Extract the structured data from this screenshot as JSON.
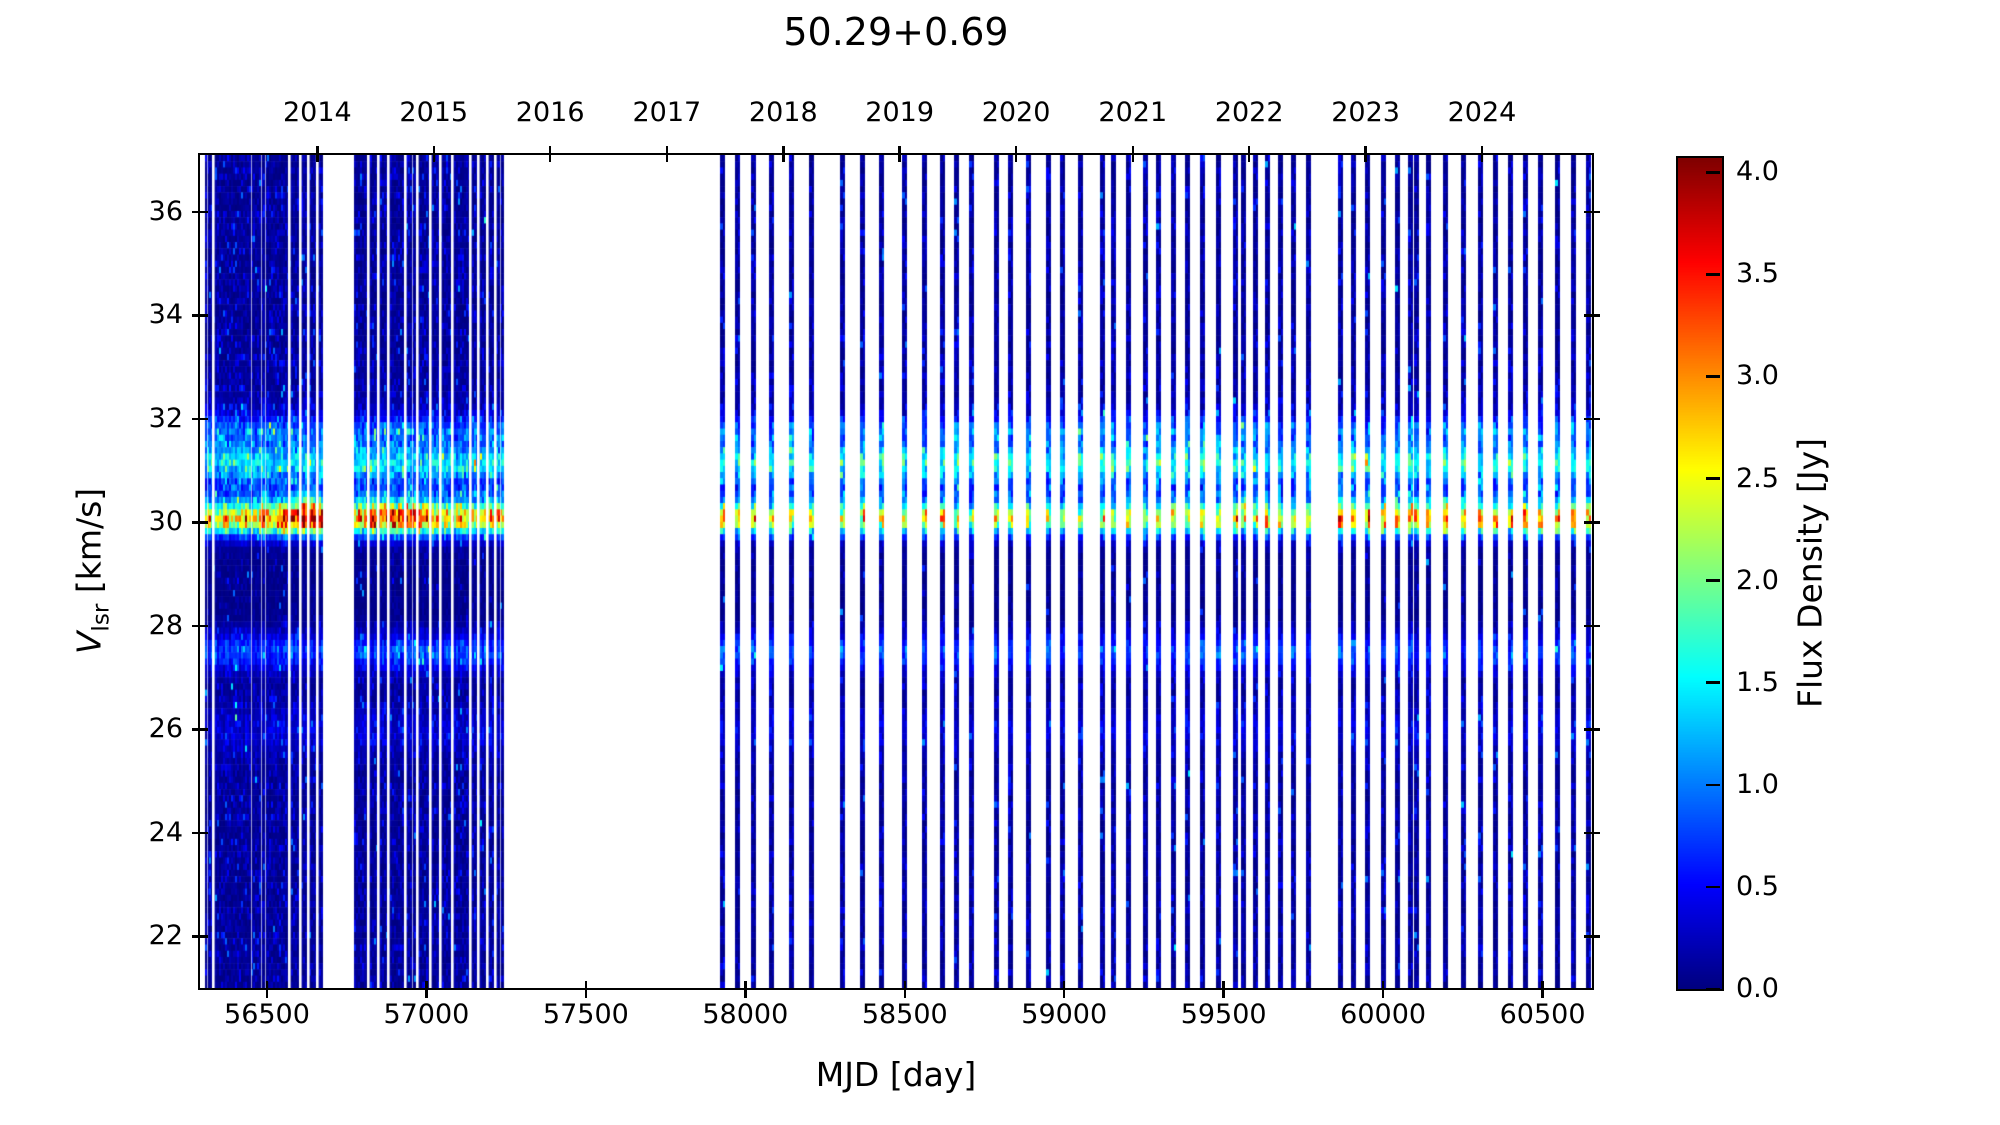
{
  "chart_data": {
    "type": "heatmap",
    "title": "50.29+0.69",
    "xlabel": "MJD [day]",
    "ylabel": "V_lsr [km/s]",
    "ylabel_parts": {
      "symbol": "V",
      "subscript": "lsr",
      "units": " [km/s]"
    },
    "colormap": "jet",
    "grid": false,
    "xlim": [
      56290,
      60655
    ],
    "ylim": [
      21.0,
      37.1
    ],
    "x_ticks": [
      56500,
      57000,
      57500,
      58000,
      58500,
      59000,
      59500,
      60000,
      60500
    ],
    "y_ticks": [
      22,
      24,
      26,
      28,
      30,
      32,
      34,
      36
    ],
    "top_axis_years": [
      {
        "label": "2014",
        "mjd": 56658
      },
      {
        "label": "2015",
        "mjd": 57023
      },
      {
        "label": "2016",
        "mjd": 57388
      },
      {
        "label": "2017",
        "mjd": 57754
      },
      {
        "label": "2018",
        "mjd": 58119
      },
      {
        "label": "2019",
        "mjd": 58484
      },
      {
        "label": "2020",
        "mjd": 58849
      },
      {
        "label": "2021",
        "mjd": 59215
      },
      {
        "label": "2022",
        "mjd": 59580
      },
      {
        "label": "2023",
        "mjd": 59945
      },
      {
        "label": "2024",
        "mjd": 60310
      }
    ],
    "colorbar": {
      "label": "Flux Density [Jy]",
      "vmin": 0.0,
      "vmax": 4.07,
      "ticks": [
        0.0,
        0.5,
        1.0,
        1.5,
        2.0,
        2.5,
        3.0,
        3.5,
        4.0
      ]
    },
    "observations": {
      "dense_blocks": [
        {
          "start": 56306,
          "end": 56670,
          "gaps": [
            56331,
            56570,
            56604,
            56629,
            56658
          ]
        },
        {
          "start": 56774,
          "end": 57242,
          "gaps": [
            56817,
            56848,
            56880,
            56933,
            56970,
            57010,
            57043,
            57080,
            57137,
            57163,
            57190,
            57215
          ]
        }
      ],
      "sparse_epochs": [
        57927,
        57974,
        58024,
        58081,
        58143,
        58206,
        58303,
        58366,
        58425,
        58498,
        58560,
        58617,
        58660,
        58708,
        58786,
        58830,
        58886,
        58949,
        58993,
        59049,
        59118,
        59153,
        59200,
        59253,
        59294,
        59341,
        59385,
        59432,
        59482,
        59535,
        59560,
        59598,
        59635,
        59676,
        59717,
        59764,
        59864,
        59905,
        59949,
        59999,
        60043,
        60085,
        60102,
        60140,
        60194,
        60250,
        60303,
        60350,
        60397,
        60444,
        60492,
        60545,
        60595,
        60642
      ],
      "sparse_stripe_width_days": 16
    },
    "spectral_features": [
      {
        "v_lsr": 30.05,
        "sigma": 0.2,
        "peak_jy_range": [
          1.8,
          4.0
        ],
        "note": "main maser feature, reddest near MJD 56570-56670"
      },
      {
        "v_lsr": 31.15,
        "sigma": 0.24,
        "peak_jy_range": [
          0.8,
          1.5
        ]
      },
      {
        "v_lsr": 31.78,
        "sigma": 0.18,
        "peak_jy_range": [
          0.35,
          0.85
        ]
      },
      {
        "v_lsr": 27.5,
        "sigma": 0.24,
        "peak_jy_range": [
          0.35,
          0.9
        ]
      },
      {
        "v_lsr": 26.0,
        "sigma": 0.3,
        "peak_jy_range": [
          0.1,
          0.35
        ]
      }
    ],
    "noise_floor_jy": 0.15
  },
  "colors": {
    "background": "#ffffff",
    "axis": "#000000",
    "text": "#000000",
    "cmap_low": "#000080",
    "cmap_high": "#800000"
  }
}
